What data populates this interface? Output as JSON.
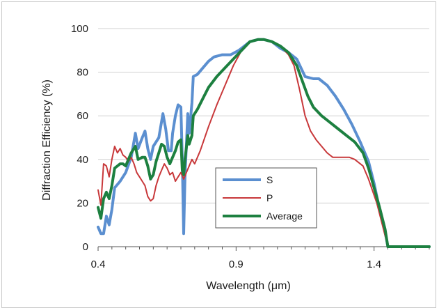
{
  "chart_data": {
    "type": "line",
    "title": "",
    "xlabel": "Wavelength (μm)",
    "ylabel": "Diffraction Efficiency (%)",
    "xlim": [
      0.4,
      1.6
    ],
    "ylim": [
      0,
      100
    ],
    "x_ticks": [
      0.4,
      0.9,
      1.4
    ],
    "x_tick_labels": [
      "0.4",
      "0.9",
      "1.4"
    ],
    "y_ticks": [
      0,
      20,
      40,
      60,
      80,
      100
    ],
    "y_tick_labels": [
      "0",
      "20",
      "40",
      "60",
      "80",
      "100"
    ],
    "grid": "horizontal",
    "legend_position": "inside-bottom-center",
    "series": [
      {
        "name": "S",
        "color": "#5b8fd0",
        "points": [
          [
            0.4,
            9
          ],
          [
            0.41,
            6
          ],
          [
            0.42,
            6
          ],
          [
            0.43,
            14
          ],
          [
            0.44,
            10
          ],
          [
            0.45,
            17
          ],
          [
            0.46,
            27
          ],
          [
            0.48,
            30
          ],
          [
            0.5,
            34
          ],
          [
            0.52,
            41
          ],
          [
            0.535,
            52
          ],
          [
            0.545,
            45
          ],
          [
            0.56,
            50
          ],
          [
            0.57,
            53
          ],
          [
            0.58,
            45
          ],
          [
            0.59,
            40
          ],
          [
            0.6,
            46
          ],
          [
            0.62,
            50
          ],
          [
            0.635,
            61
          ],
          [
            0.645,
            54
          ],
          [
            0.655,
            44
          ],
          [
            0.665,
            44
          ],
          [
            0.67,
            52
          ],
          [
            0.68,
            60
          ],
          [
            0.69,
            65
          ],
          [
            0.7,
            64
          ],
          [
            0.705,
            40
          ],
          [
            0.71,
            6
          ],
          [
            0.715,
            32
          ],
          [
            0.725,
            61
          ],
          [
            0.73,
            52
          ],
          [
            0.74,
            66
          ],
          [
            0.745,
            78
          ],
          [
            0.76,
            79
          ],
          [
            0.78,
            82
          ],
          [
            0.8,
            85
          ],
          [
            0.82,
            87
          ],
          [
            0.85,
            88
          ],
          [
            0.88,
            88
          ],
          [
            0.91,
            90
          ],
          [
            0.95,
            94
          ],
          [
            0.98,
            95
          ],
          [
            1.0,
            95
          ],
          [
            1.03,
            94
          ],
          [
            1.06,
            91
          ],
          [
            1.09,
            89
          ],
          [
            1.12,
            86
          ],
          [
            1.15,
            78
          ],
          [
            1.18,
            77
          ],
          [
            1.2,
            77
          ],
          [
            1.23,
            74
          ],
          [
            1.26,
            69
          ],
          [
            1.29,
            63
          ],
          [
            1.32,
            56
          ],
          [
            1.35,
            48
          ],
          [
            1.38,
            39
          ],
          [
            1.4,
            29
          ],
          [
            1.42,
            17
          ],
          [
            1.44,
            7
          ],
          [
            1.45,
            0
          ],
          [
            1.5,
            0
          ],
          [
            1.6,
            0
          ]
        ]
      },
      {
        "name": "P",
        "color": "#c8383a",
        "points": [
          [
            0.4,
            26
          ],
          [
            0.41,
            19
          ],
          [
            0.42,
            38
          ],
          [
            0.43,
            37
          ],
          [
            0.44,
            32
          ],
          [
            0.45,
            40
          ],
          [
            0.46,
            46
          ],
          [
            0.47,
            43
          ],
          [
            0.48,
            45
          ],
          [
            0.49,
            42
          ],
          [
            0.5,
            41
          ],
          [
            0.51,
            39
          ],
          [
            0.52,
            41
          ],
          [
            0.53,
            38
          ],
          [
            0.54,
            34
          ],
          [
            0.55,
            32
          ],
          [
            0.56,
            30
          ],
          [
            0.57,
            28
          ],
          [
            0.58,
            23
          ],
          [
            0.59,
            21
          ],
          [
            0.6,
            22
          ],
          [
            0.61,
            28
          ],
          [
            0.62,
            32
          ],
          [
            0.63,
            35
          ],
          [
            0.64,
            38
          ],
          [
            0.65,
            36
          ],
          [
            0.66,
            33
          ],
          [
            0.67,
            34
          ],
          [
            0.68,
            30
          ],
          [
            0.69,
            32
          ],
          [
            0.7,
            34
          ],
          [
            0.71,
            31
          ],
          [
            0.72,
            34
          ],
          [
            0.73,
            37
          ],
          [
            0.74,
            40
          ],
          [
            0.75,
            38
          ],
          [
            0.77,
            44
          ],
          [
            0.8,
            55
          ],
          [
            0.83,
            65
          ],
          [
            0.86,
            74
          ],
          [
            0.89,
            83
          ],
          [
            0.92,
            90
          ],
          [
            0.95,
            94
          ],
          [
            0.98,
            95
          ],
          [
            1.0,
            95
          ],
          [
            1.03,
            94
          ],
          [
            1.06,
            92
          ],
          [
            1.09,
            88
          ],
          [
            1.11,
            83
          ],
          [
            1.13,
            72
          ],
          [
            1.15,
            60
          ],
          [
            1.17,
            53
          ],
          [
            1.19,
            49
          ],
          [
            1.21,
            46
          ],
          [
            1.23,
            43
          ],
          [
            1.25,
            41
          ],
          [
            1.28,
            41
          ],
          [
            1.31,
            41
          ],
          [
            1.33,
            40
          ],
          [
            1.36,
            37
          ],
          [
            1.38,
            31
          ],
          [
            1.41,
            20
          ],
          [
            1.43,
            10
          ],
          [
            1.45,
            0
          ],
          [
            1.5,
            0
          ],
          [
            1.6,
            0
          ]
        ]
      },
      {
        "name": "Average",
        "color": "#1d8040",
        "points": [
          [
            0.4,
            18
          ],
          [
            0.41,
            13
          ],
          [
            0.42,
            22
          ],
          [
            0.43,
            25
          ],
          [
            0.44,
            22
          ],
          [
            0.45,
            28
          ],
          [
            0.46,
            36
          ],
          [
            0.47,
            37
          ],
          [
            0.48,
            38
          ],
          [
            0.49,
            38
          ],
          [
            0.5,
            37
          ],
          [
            0.51,
            40
          ],
          [
            0.52,
            43
          ],
          [
            0.535,
            46
          ],
          [
            0.545,
            40
          ],
          [
            0.56,
            41
          ],
          [
            0.57,
            41
          ],
          [
            0.58,
            37
          ],
          [
            0.59,
            31
          ],
          [
            0.6,
            33
          ],
          [
            0.61,
            39
          ],
          [
            0.62,
            43
          ],
          [
            0.63,
            47
          ],
          [
            0.64,
            46
          ],
          [
            0.65,
            41
          ],
          [
            0.66,
            38
          ],
          [
            0.67,
            41
          ],
          [
            0.68,
            44
          ],
          [
            0.69,
            48
          ],
          [
            0.7,
            49
          ],
          [
            0.705,
            35
          ],
          [
            0.71,
            33
          ],
          [
            0.715,
            40
          ],
          [
            0.725,
            51
          ],
          [
            0.73,
            47
          ],
          [
            0.74,
            51
          ],
          [
            0.745,
            60
          ],
          [
            0.76,
            63
          ],
          [
            0.78,
            68
          ],
          [
            0.8,
            73
          ],
          [
            0.83,
            78
          ],
          [
            0.86,
            82
          ],
          [
            0.89,
            86
          ],
          [
            0.92,
            90
          ],
          [
            0.95,
            94
          ],
          [
            0.98,
            95
          ],
          [
            1.0,
            95
          ],
          [
            1.03,
            94
          ],
          [
            1.06,
            92
          ],
          [
            1.09,
            89
          ],
          [
            1.12,
            83
          ],
          [
            1.14,
            76
          ],
          [
            1.16,
            69
          ],
          [
            1.18,
            64
          ],
          [
            1.21,
            60
          ],
          [
            1.24,
            57
          ],
          [
            1.27,
            54
          ],
          [
            1.3,
            51
          ],
          [
            1.33,
            48
          ],
          [
            1.36,
            43
          ],
          [
            1.38,
            36
          ],
          [
            1.4,
            27
          ],
          [
            1.42,
            18
          ],
          [
            1.44,
            8
          ],
          [
            1.45,
            0
          ],
          [
            1.5,
            0
          ],
          [
            1.6,
            0
          ]
        ]
      }
    ]
  }
}
